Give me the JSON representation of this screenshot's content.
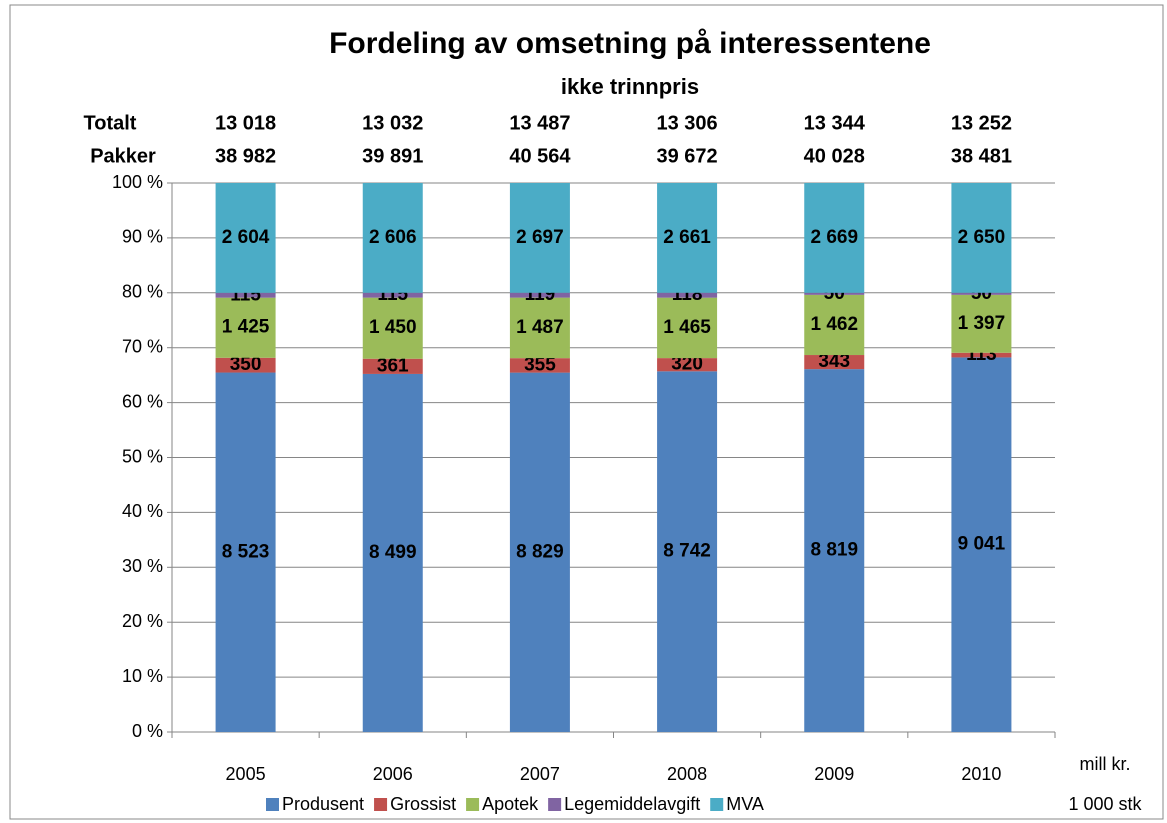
{
  "chart_data": {
    "type": "bar",
    "stacking": "percent",
    "title": "Fordeling av omsetning på interessentene",
    "subtitle": "ikke trinnpris",
    "categories": [
      "2005",
      "2006",
      "2007",
      "2008",
      "2009",
      "2010"
    ],
    "series": [
      {
        "name": "Produsent",
        "color": "#4f81bd",
        "values": [
          8523,
          8499,
          8829,
          8742,
          8819,
          9041
        ],
        "value_labels": [
          "8 523",
          "8 499",
          "8 829",
          "8 742",
          "8 819",
          "9 041"
        ]
      },
      {
        "name": "Grossist",
        "color": "#c0504d",
        "values": [
          350,
          361,
          355,
          320,
          343,
          113
        ],
        "value_labels": [
          "350",
          "361",
          "355",
          "320",
          "343",
          "113"
        ]
      },
      {
        "name": "Apotek",
        "color": "#9bbb59",
        "values": [
          1425,
          1450,
          1487,
          1465,
          1462,
          1397
        ],
        "value_labels": [
          "1 425",
          "1 450",
          "1 487",
          "1 465",
          "1 462",
          "1 397"
        ]
      },
      {
        "name": "Legemiddelavgift",
        "color": "#8064a2",
        "values": [
          115,
          115,
          119,
          118,
          50,
          50
        ],
        "value_labels": [
          "115",
          "115",
          "119",
          "118",
          "50",
          "50"
        ]
      },
      {
        "name": "MVA",
        "color": "#4bacc6",
        "values": [
          2604,
          2606,
          2697,
          2661,
          2669,
          2650
        ],
        "value_labels": [
          "2 604",
          "2 606",
          "2 697",
          "2 661",
          "2 669",
          "2 650"
        ]
      }
    ],
    "totals": {
      "label": "Totalt",
      "values": [
        13018,
        13032,
        13487,
        13306,
        13344,
        13252
      ],
      "value_labels": [
        "13 018",
        "13 032",
        "13 487",
        "13 306",
        "13 344",
        "13 252"
      ]
    },
    "packages": {
      "label": "Pakker",
      "values": [
        38982,
        39891,
        40564,
        39672,
        40028,
        38481
      ],
      "value_labels": [
        "38 982",
        "39 891",
        "40 564",
        "39 672",
        "40 028",
        "38 481"
      ]
    },
    "unit_labels": [
      "mill kr.",
      "1 000 stk"
    ],
    "ylim": [
      0,
      100
    ],
    "yticks": [
      {
        "value": 0,
        "label": "0 %"
      },
      {
        "value": 10,
        "label": "10 %"
      },
      {
        "value": 20,
        "label": "20 %"
      },
      {
        "value": 30,
        "label": "30 %"
      },
      {
        "value": 40,
        "label": "40 %"
      },
      {
        "value": 50,
        "label": "50 %"
      },
      {
        "value": 60,
        "label": "60 %"
      },
      {
        "value": 70,
        "label": "70 %"
      },
      {
        "value": 80,
        "label": "80 %"
      },
      {
        "value": 90,
        "label": "90 %"
      },
      {
        "value": 100,
        "label": "100 %"
      }
    ],
    "grid": true,
    "legend": "bottom"
  }
}
